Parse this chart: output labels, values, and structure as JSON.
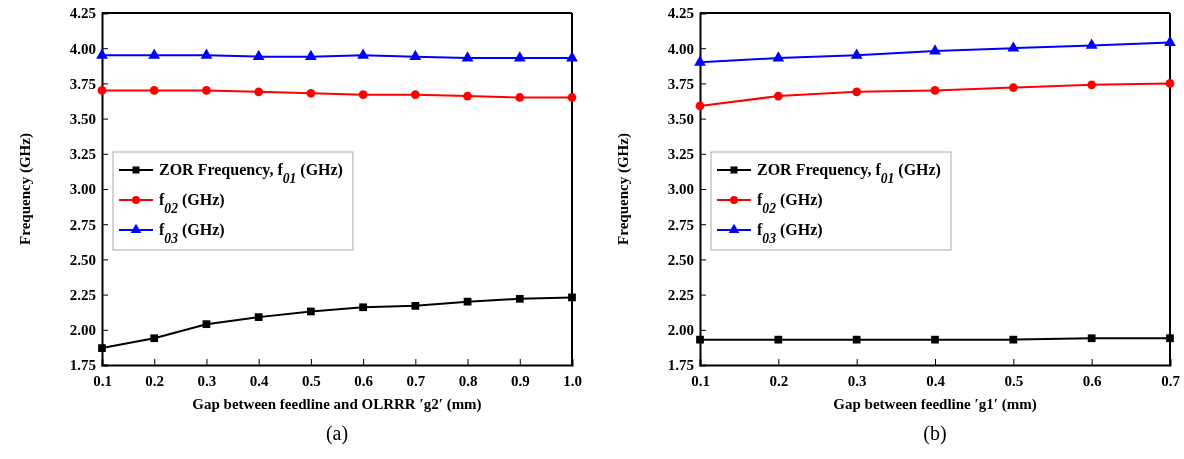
{
  "chart_data": [
    {
      "type": "line",
      "xlabel": "Gap between feedline and OLRRR ′g2′ (mm)",
      "ylabel": "Frequency (GHz)",
      "x": [
        0.1,
        0.2,
        0.3,
        0.4,
        0.5,
        0.6,
        0.7,
        0.8,
        0.9,
        1.0
      ],
      "series": [
        {
          "name": "ZOR Frequency, f$_{01}$ (GHz)",
          "color": "#000000",
          "marker": "square",
          "values": [
            1.87,
            1.94,
            2.04,
            2.09,
            2.13,
            2.16,
            2.17,
            2.2,
            2.22,
            2.23
          ]
        },
        {
          "name": "f$_{02}$ (GHz)",
          "color": "#ff0000",
          "marker": "circle",
          "values": [
            3.7,
            3.7,
            3.7,
            3.69,
            3.68,
            3.67,
            3.67,
            3.66,
            3.65,
            3.65
          ]
        },
        {
          "name": "f$_{03}$ (GHz)",
          "color": "#0000ff",
          "marker": "triangle",
          "values": [
            3.95,
            3.95,
            3.95,
            3.94,
            3.94,
            3.95,
            3.94,
            3.93,
            3.93,
            3.93
          ]
        }
      ],
      "xlim": [
        0.1,
        1.0
      ],
      "xticks": [
        {
          "value": 0.1,
          "label": "0.1"
        },
        {
          "value": 0.2,
          "label": "0.2"
        },
        {
          "value": 0.3,
          "label": "0.3"
        },
        {
          "value": 0.4,
          "label": "0.4"
        },
        {
          "value": 0.5,
          "label": "0.5"
        },
        {
          "value": 0.6,
          "label": "0.6"
        },
        {
          "value": 0.7,
          "label": "0.7"
        },
        {
          "value": 0.8,
          "label": "0.8"
        },
        {
          "value": 0.9,
          "label": "0.9"
        },
        {
          "value": 1.0,
          "label": "1.0"
        }
      ],
      "ylim": [
        1.75,
        4.25
      ],
      "yticks": [
        {
          "value": 1.75,
          "label": "1.75"
        },
        {
          "value": 2.0,
          "label": "2.00"
        },
        {
          "value": 2.25,
          "label": "2.25"
        },
        {
          "value": 2.5,
          "label": "2.50"
        },
        {
          "value": 2.75,
          "label": "2.75"
        },
        {
          "value": 3.0,
          "label": "3.00"
        },
        {
          "value": 3.25,
          "label": "3.25"
        },
        {
          "value": 3.5,
          "label": "3.50"
        },
        {
          "value": 3.75,
          "label": "3.75"
        },
        {
          "value": 4.0,
          "label": "4.00"
        },
        {
          "value": 4.25,
          "label": "4.25"
        }
      ],
      "legend": "left",
      "grid": false,
      "line_style": "solid",
      "annotations": [
        "(a)"
      ]
    },
    {
      "type": "line",
      "xlabel": "Gap between feedline ′g1′ (mm)",
      "ylabel": "Frequency (GHz)",
      "x": [
        0.1,
        0.2,
        0.3,
        0.4,
        0.5,
        0.6,
        0.7
      ],
      "series": [
        {
          "name": "ZOR Frequency, f$_{01}$ (GHz)",
          "color": "#000000",
          "marker": "square",
          "values": [
            1.93,
            1.93,
            1.93,
            1.93,
            1.93,
            1.94,
            1.94
          ]
        },
        {
          "name": "f$_{02}$ (GHz)",
          "color": "#ff0000",
          "marker": "circle",
          "values": [
            3.59,
            3.66,
            3.69,
            3.7,
            3.72,
            3.74,
            3.75
          ]
        },
        {
          "name": "f$_{03}$ (GHz)",
          "color": "#0000ff",
          "marker": "triangle",
          "values": [
            3.9,
            3.93,
            3.95,
            3.98,
            4.0,
            4.02,
            4.04
          ]
        }
      ],
      "xlim": [
        0.1,
        0.7
      ],
      "xticks": [
        0.1,
        0.2,
        0.3,
        0.4,
        0.5,
        0.6,
        0.7
      ],
      "ylim": [
        1.75,
        4.25
      ],
      "yticks": [
        {
          "value": 1.75,
          "label": "1.75"
        },
        {
          "value": 2.0,
          "label": "2.00"
        },
        {
          "value": 2.25,
          "label": "2.25"
        },
        {
          "value": 2.5,
          "label": "2.50"
        },
        {
          "value": 2.75,
          "label": "2.75"
        },
        {
          "value": 3.0,
          "label": "3.00"
        },
        {
          "value": 3.25,
          "label": "3.25"
        },
        {
          "value": 3.5,
          "label": "3.50"
        },
        {
          "value": 3.75,
          "label": "3.75"
        },
        {
          "value": 4.0,
          "label": "4.00"
        },
        {
          "value": 4.25,
          "label": "4.25"
        }
      ],
      "legend": "left",
      "grid": false,
      "line_style": "solid",
      "annotations": [
        "(b)"
      ]
    }
  ]
}
